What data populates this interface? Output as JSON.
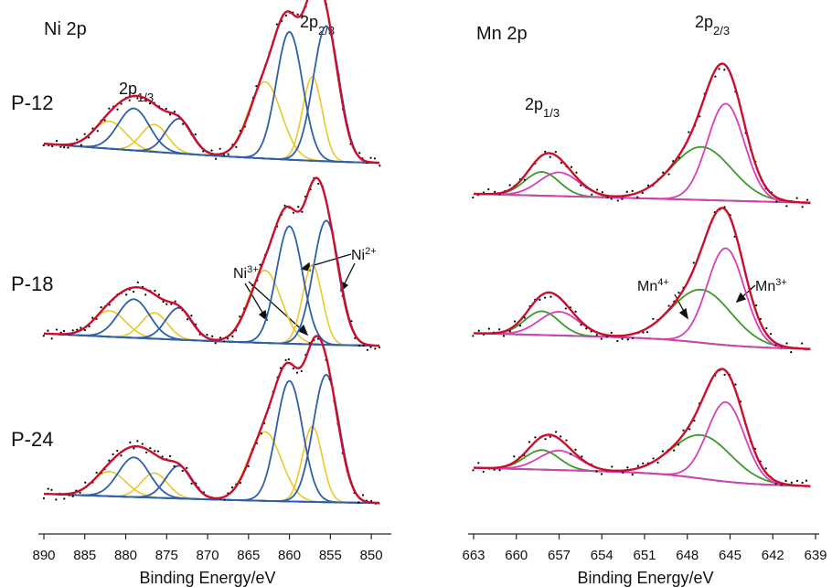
{
  "chart_data": [
    {
      "type": "line",
      "title": "Ni 2p",
      "xlabel": "Binding Energy/eV",
      "xlim": [
        890,
        848
      ],
      "xticks": [
        890,
        885,
        880,
        875,
        870,
        865,
        860,
        855,
        850
      ],
      "samples": [
        "P-12",
        "P-18",
        "P-24"
      ],
      "peak_labels": [
        {
          "base": "2p",
          "sub": "1/3"
        },
        {
          "base": "2p",
          "sub": "2/3"
        }
      ],
      "annotations": [
        {
          "base": "Ni",
          "sup": "3+"
        },
        {
          "base": "Ni",
          "sup": "2+"
        }
      ],
      "series_colors": {
        "envelope": "#c8102e",
        "ni2plus": "#2e5fa8",
        "ni3plus": "#e8c82a",
        "background": "#8c8c8c",
        "raw": "#000000"
      },
      "components": {
        "ni2plus_centers": [
          879.0,
          873.5,
          860.0,
          855.5
        ],
        "ni3plus_centers": [
          882.0,
          876.5,
          863.0,
          857.2
        ]
      }
    },
    {
      "type": "line",
      "title": "Mn 2p",
      "xlabel": "Binding Energy/eV",
      "xlim": [
        663,
        639
      ],
      "xticks": [
        663,
        660,
        657,
        654,
        651,
        648,
        645,
        642,
        639
      ],
      "peak_labels": [
        {
          "base": "2p",
          "sub": "1/3"
        },
        {
          "base": "2p",
          "sub": "2/3"
        }
      ],
      "annotations": [
        {
          "base": "Mn",
          "sup": "4+"
        },
        {
          "base": "Mn",
          "sup": "3+"
        }
      ],
      "series_colors": {
        "envelope": "#c8102e",
        "mn3plus": "#d63fb8",
        "mn4plus": "#3a9a2a",
        "background": "#8c8c8c",
        "raw": "#000000"
      },
      "components": {
        "mn3plus_centers": [
          657.0,
          645.3
        ],
        "mn4plus_centers": [
          658.2,
          647.0
        ]
      }
    }
  ]
}
